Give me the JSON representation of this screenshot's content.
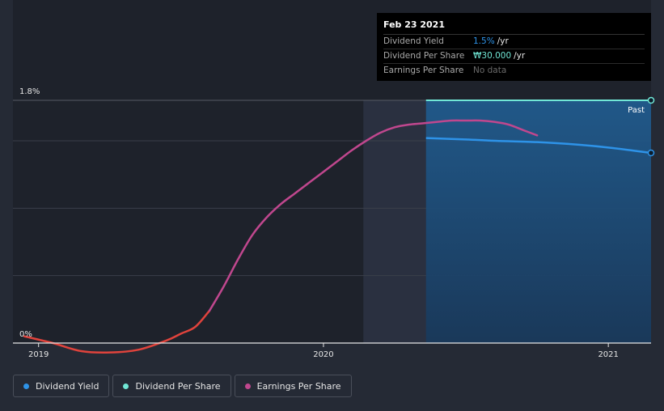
{
  "colors": {
    "background": "#252a35",
    "dividend_yield": "#2e93e8",
    "dividend_per_share": "#71e7d6",
    "earnings_per_share": "#c0478e",
    "eps_early": "#e0433c"
  },
  "tooltip": {
    "date": "Feb 23 2021",
    "rows": [
      {
        "label": "Dividend Yield",
        "value": "1.5%",
        "unit": "/yr"
      },
      {
        "label": "Dividend Per Share",
        "value": "₩30.000",
        "unit": "/yr"
      },
      {
        "label": "Earnings Per Share",
        "value": "No data",
        "unit": ""
      }
    ]
  },
  "past_label": "Past",
  "legend": [
    {
      "label": "Dividend Yield",
      "color": "#2e93e8"
    },
    {
      "label": "Dividend Per Share",
      "color": "#71e7d6"
    },
    {
      "label": "Earnings Per Share",
      "color": "#c0478e"
    }
  ],
  "chart_data": {
    "type": "line",
    "title": "",
    "xlabel": "",
    "ylabel": "",
    "x_ticks": [
      "2019",
      "2020",
      "2021"
    ],
    "x_tick_values": [
      2019.0,
      2020.0,
      2021.0
    ],
    "xlim": [
      2018.91,
      2021.15
    ],
    "y_ticks": [
      "0%",
      "1.8%"
    ],
    "ylim": [
      0,
      1.8
    ],
    "grid_values": [
      0.5,
      1.0,
      1.5
    ],
    "past_region_start": 2020.14,
    "forecast_region_start": 2020.36,
    "series": [
      {
        "name": "Dividend Yield",
        "x": [
          2020.36,
          2020.5,
          2020.6,
          2020.75,
          2020.9,
          2021.0,
          2021.15
        ],
        "values": [
          1.52,
          1.51,
          1.5,
          1.49,
          1.47,
          1.45,
          1.41
        ]
      },
      {
        "name": "Dividend Per Share",
        "x": [
          2020.36,
          2021.15
        ],
        "values": [
          1.8,
          1.8
        ]
      },
      {
        "name": "Earnings Per Share",
        "x": [
          2018.95,
          2019.05,
          2019.15,
          2019.25,
          2019.35,
          2019.45,
          2019.5,
          2019.55,
          2019.6,
          2019.65,
          2019.7,
          2019.75,
          2019.8,
          2019.85,
          2019.9,
          2019.95,
          2020.0,
          2020.05,
          2020.1,
          2020.15,
          2020.2,
          2020.25,
          2020.3,
          2020.35,
          2020.4,
          2020.45,
          2020.5,
          2020.55,
          2020.6,
          2020.65,
          2020.7,
          2020.75
        ],
        "values": [
          0.05,
          0.0,
          -0.06,
          -0.07,
          -0.05,
          0.02,
          0.07,
          0.12,
          0.24,
          0.42,
          0.62,
          0.8,
          0.93,
          1.03,
          1.11,
          1.19,
          1.27,
          1.35,
          1.43,
          1.5,
          1.56,
          1.6,
          1.62,
          1.63,
          1.64,
          1.65,
          1.65,
          1.65,
          1.64,
          1.62,
          1.58,
          1.54
        ]
      }
    ]
  }
}
